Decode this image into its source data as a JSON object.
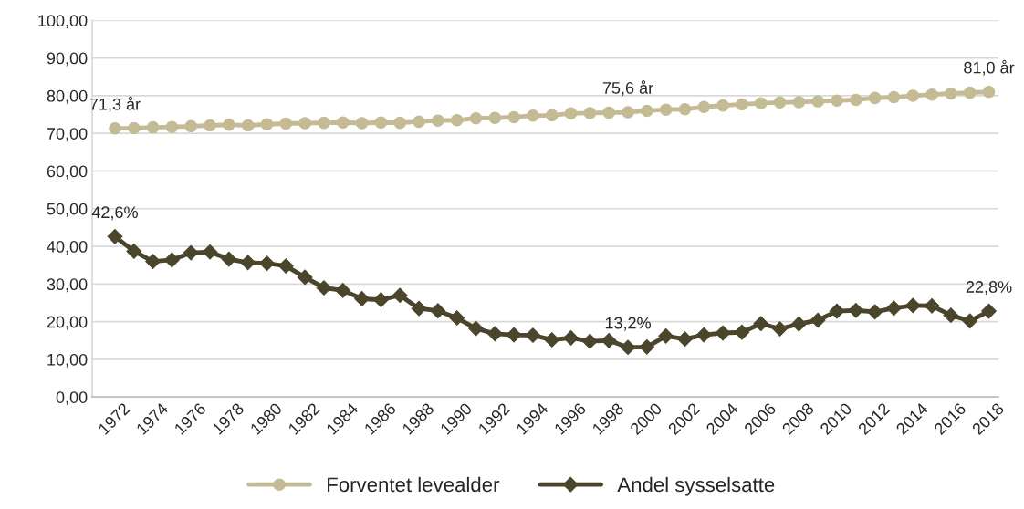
{
  "chart_data": {
    "type": "line",
    "categories": [
      "1972",
      null,
      "1974",
      null,
      "1976",
      null,
      "1978",
      null,
      "1980",
      null,
      "1982",
      null,
      "1984",
      null,
      "1986",
      null,
      "1988",
      null,
      "1990",
      null,
      "1992",
      null,
      "1994",
      null,
      "1996",
      null,
      "1998",
      null,
      "2000",
      null,
      "2002",
      null,
      "2004",
      null,
      "2006",
      null,
      "2008",
      null,
      "2010",
      null,
      "2012",
      null,
      "2014",
      null,
      "2016",
      null,
      "2018"
    ],
    "series": [
      {
        "name": "Forventet levealder",
        "color": "#c4bb95",
        "marker": "circle",
        "values": [
          71.3,
          71.4,
          71.6,
          71.7,
          71.9,
          72.1,
          72.3,
          72.1,
          72.4,
          72.6,
          72.7,
          72.8,
          72.9,
          72.7,
          72.9,
          72.8,
          73.1,
          73.4,
          73.5,
          74.0,
          74.1,
          74.3,
          74.7,
          74.8,
          75.3,
          75.4,
          75.5,
          75.6,
          76.0,
          76.3,
          76.4,
          77.0,
          77.4,
          77.7,
          78.0,
          78.2,
          78.3,
          78.5,
          78.7,
          78.9,
          79.4,
          79.6,
          80.0,
          80.3,
          80.6,
          80.8,
          81.0
        ],
        "value_labels": [
          "71,3 år",
          null,
          null,
          null,
          null,
          null,
          null,
          null,
          null,
          null,
          null,
          null,
          null,
          null,
          null,
          null,
          null,
          null,
          null,
          null,
          null,
          null,
          null,
          null,
          null,
          null,
          null,
          "75,6 år",
          null,
          null,
          null,
          null,
          null,
          null,
          null,
          null,
          null,
          null,
          null,
          null,
          null,
          null,
          null,
          null,
          null,
          null,
          "81,0 år"
        ]
      },
      {
        "name": "Andel sysselsatte",
        "color": "#4b452c",
        "marker": "diamond",
        "values": [
          42.6,
          38.7,
          36.0,
          36.4,
          38.3,
          38.5,
          36.6,
          35.7,
          35.5,
          34.8,
          31.8,
          29.0,
          28.3,
          26.1,
          25.8,
          27.0,
          23.5,
          22.9,
          21.0,
          18.2,
          16.8,
          16.5,
          16.4,
          15.2,
          15.7,
          14.8,
          15.0,
          13.2,
          13.3,
          16.2,
          15.4,
          16.5,
          17.0,
          17.2,
          19.5,
          18.1,
          19.4,
          20.4,
          22.8,
          23.0,
          22.6,
          23.6,
          24.3,
          24.2,
          21.7,
          20.2,
          22.8
        ],
        "value_labels": [
          "42,6%",
          null,
          null,
          null,
          null,
          null,
          null,
          null,
          null,
          null,
          null,
          null,
          null,
          null,
          null,
          null,
          null,
          null,
          null,
          null,
          null,
          null,
          null,
          null,
          null,
          null,
          null,
          "13,2%",
          null,
          null,
          null,
          null,
          null,
          null,
          null,
          null,
          null,
          null,
          null,
          null,
          null,
          null,
          null,
          null,
          null,
          null,
          "22,8%"
        ]
      }
    ],
    "ylim": [
      0,
      100
    ],
    "yticks": [
      {
        "value": 0,
        "label": "0,00"
      },
      {
        "value": 10,
        "label": "10,00"
      },
      {
        "value": 20,
        "label": "20,00"
      },
      {
        "value": 30,
        "label": "30,00"
      },
      {
        "value": 40,
        "label": "40,00"
      },
      {
        "value": 50,
        "label": "50,00"
      },
      {
        "value": 60,
        "label": "60,00"
      },
      {
        "value": 70,
        "label": "70,00"
      },
      {
        "value": 80,
        "label": "80,00"
      },
      {
        "value": 90,
        "label": "90,00"
      },
      {
        "value": 100,
        "label": "100,00"
      }
    ],
    "grid": "y",
    "legend": "bottom"
  }
}
